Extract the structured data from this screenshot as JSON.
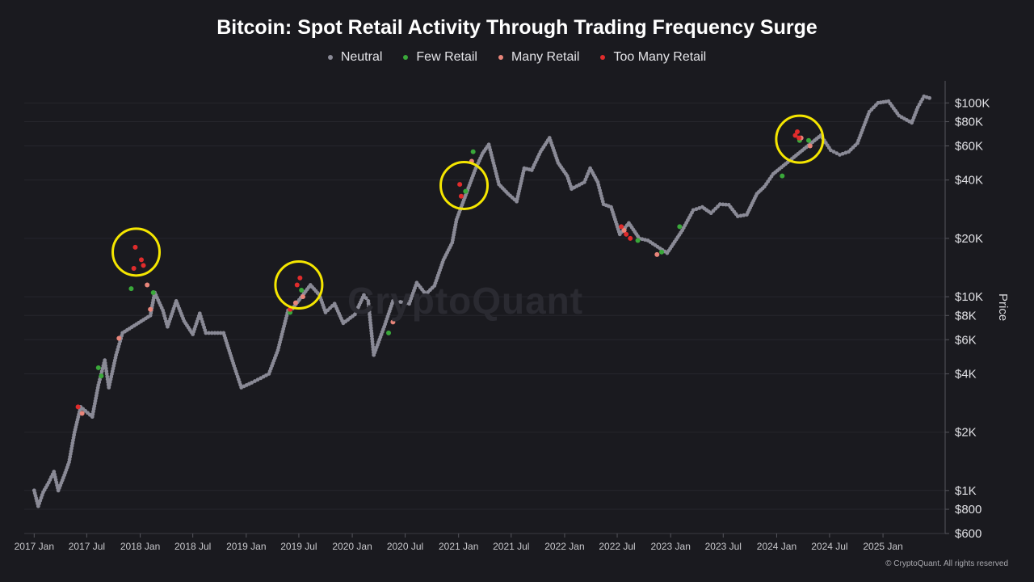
{
  "chart_data": {
    "type": "scatter",
    "title": "Bitcoin: Spot Retail Activity Through Trading Frequency Surge",
    "ylabel": "Price",
    "yscale": "log",
    "ylim": [
      600,
      130000
    ],
    "xlim": [
      "2016-12-20",
      "2025-07-20"
    ],
    "legend_position": "top-center",
    "x_ticks": [
      {
        "date": "2017-01-01",
        "label": "2017 Jan"
      },
      {
        "date": "2017-07-01",
        "label": "2017 Jul"
      },
      {
        "date": "2018-01-01",
        "label": "2018 Jan"
      },
      {
        "date": "2018-07-01",
        "label": "2018 Jul"
      },
      {
        "date": "2019-01-01",
        "label": "2019 Jan"
      },
      {
        "date": "2019-07-01",
        "label": "2019 Jul"
      },
      {
        "date": "2020-01-01",
        "label": "2020 Jan"
      },
      {
        "date": "2020-07-01",
        "label": "2020 Jul"
      },
      {
        "date": "2021-01-01",
        "label": "2021 Jan"
      },
      {
        "date": "2021-07-01",
        "label": "2021 Jul"
      },
      {
        "date": "2022-01-01",
        "label": "2022 Jan"
      },
      {
        "date": "2022-07-01",
        "label": "2022 Jul"
      },
      {
        "date": "2023-01-01",
        "label": "2023 Jan"
      },
      {
        "date": "2023-07-01",
        "label": "2023 Jul"
      },
      {
        "date": "2024-01-01",
        "label": "2024 Jan"
      },
      {
        "date": "2024-07-01",
        "label": "2024 Jul"
      },
      {
        "date": "2025-01-01",
        "label": "2025 Jan"
      }
    ],
    "y_ticks": [
      {
        "value": 600,
        "label": "$600"
      },
      {
        "value": 800,
        "label": "$800"
      },
      {
        "value": 1000,
        "label": "$1K"
      },
      {
        "value": 2000,
        "label": "$2K"
      },
      {
        "value": 4000,
        "label": "$4K"
      },
      {
        "value": 6000,
        "label": "$6K"
      },
      {
        "value": 8000,
        "label": "$8K"
      },
      {
        "value": 10000,
        "label": "$10K"
      },
      {
        "value": 20000,
        "label": "$20K"
      },
      {
        "value": 40000,
        "label": "$40K"
      },
      {
        "value": 60000,
        "label": "$60K"
      },
      {
        "value": 80000,
        "label": "$80K"
      },
      {
        "value": 100000,
        "label": "$100K"
      }
    ],
    "series": [
      {
        "name": "Neutral",
        "color": "#8a8a96",
        "points": [
          [
            "2017-01-01",
            1000
          ],
          [
            "2017-01-15",
            830
          ],
          [
            "2017-02-01",
            980
          ],
          [
            "2017-02-20",
            1100
          ],
          [
            "2017-03-10",
            1250
          ],
          [
            "2017-03-25",
            1000
          ],
          [
            "2017-04-15",
            1200
          ],
          [
            "2017-05-01",
            1400
          ],
          [
            "2017-05-20",
            2000
          ],
          [
            "2017-06-10",
            2700
          ],
          [
            "2017-07-20",
            2400
          ],
          [
            "2017-08-10",
            3500
          ],
          [
            "2017-09-01",
            4700
          ],
          [
            "2017-09-15",
            3400
          ],
          [
            "2017-10-10",
            5000
          ],
          [
            "2017-11-01",
            6500
          ],
          [
            "2018-02-05",
            8000
          ],
          [
            "2018-02-20",
            10500
          ],
          [
            "2018-03-20",
            8500
          ],
          [
            "2018-04-05",
            7000
          ],
          [
            "2018-05-05",
            9500
          ],
          [
            "2018-06-01",
            7500
          ],
          [
            "2018-07-01",
            6400
          ],
          [
            "2018-07-25",
            8200
          ],
          [
            "2018-08-15",
            6500
          ],
          [
            "2018-09-15",
            6500
          ],
          [
            "2018-10-15",
            6500
          ],
          [
            "2018-11-20",
            4400
          ],
          [
            "2018-12-15",
            3400
          ],
          [
            "2019-01-20",
            3600
          ],
          [
            "2019-02-20",
            3800
          ],
          [
            "2019-03-20",
            4000
          ],
          [
            "2019-04-20",
            5300
          ],
          [
            "2019-05-25",
            8500
          ],
          [
            "2019-06-10",
            8700
          ],
          [
            "2019-08-10",
            11500
          ],
          [
            "2019-09-10",
            10200
          ],
          [
            "2019-10-01",
            8300
          ],
          [
            "2019-11-01",
            9200
          ],
          [
            "2019-12-01",
            7300
          ],
          [
            "2020-01-10",
            8100
          ],
          [
            "2020-02-10",
            10200
          ],
          [
            "2020-02-25",
            9500
          ],
          [
            "2020-03-15",
            5000
          ],
          [
            "2020-04-20",
            7000
          ],
          [
            "2020-05-20",
            9500
          ],
          [
            "2020-06-15",
            9400
          ],
          [
            "2020-07-15",
            9200
          ],
          [
            "2020-08-10",
            11800
          ],
          [
            "2020-09-10",
            10300
          ],
          [
            "2020-10-10",
            11400
          ],
          [
            "2020-11-10",
            15500
          ],
          [
            "2020-12-10",
            19000
          ],
          [
            "2020-12-25",
            25000
          ],
          [
            "2021-03-01",
            46000
          ],
          [
            "2021-03-25",
            55000
          ],
          [
            "2021-04-15",
            61000
          ],
          [
            "2021-05-20",
            38000
          ],
          [
            "2021-06-20",
            34000
          ],
          [
            "2021-07-20",
            31000
          ],
          [
            "2021-08-15",
            46000
          ],
          [
            "2021-09-10",
            45000
          ],
          [
            "2021-10-10",
            56000
          ],
          [
            "2021-11-10",
            66000
          ],
          [
            "2021-12-10",
            49000
          ],
          [
            "2022-01-10",
            42000
          ],
          [
            "2022-01-25",
            36000
          ],
          [
            "2022-03-10",
            39000
          ],
          [
            "2022-03-30",
            46000
          ],
          [
            "2022-04-25",
            39000
          ],
          [
            "2022-05-15",
            30000
          ],
          [
            "2022-06-10",
            29000
          ],
          [
            "2022-07-10",
            21000
          ],
          [
            "2022-08-10",
            24000
          ],
          [
            "2022-09-15",
            20000
          ],
          [
            "2022-10-15",
            19500
          ],
          [
            "2022-12-20",
            16800
          ],
          [
            "2023-02-10",
            22000
          ],
          [
            "2023-03-20",
            28000
          ],
          [
            "2023-04-20",
            29000
          ],
          [
            "2023-05-20",
            27000
          ],
          [
            "2023-06-20",
            30000
          ],
          [
            "2023-07-20",
            29800
          ],
          [
            "2023-08-20",
            26000
          ],
          [
            "2023-09-20",
            26500
          ],
          [
            "2023-10-25",
            34000
          ],
          [
            "2023-11-20",
            37000
          ],
          [
            "2023-12-20",
            43000
          ],
          [
            "2024-06-01",
            68000
          ],
          [
            "2024-07-05",
            57000
          ],
          [
            "2024-08-05",
            54000
          ],
          [
            "2024-09-05",
            56000
          ],
          [
            "2024-10-05",
            62000
          ],
          [
            "2024-11-15",
            90000
          ],
          [
            "2024-12-15",
            100000
          ],
          [
            "2025-01-20",
            102000
          ],
          [
            "2025-02-25",
            86000
          ],
          [
            "2025-03-15",
            83000
          ],
          [
            "2025-04-10",
            79000
          ],
          [
            "2025-05-01",
            95000
          ],
          [
            "2025-05-22",
            108000
          ],
          [
            "2025-06-10",
            106000
          ]
        ]
      },
      {
        "name": "Few Retail",
        "color": "#3aa83a",
        "points": [
          [
            "2017-08-10",
            4300
          ],
          [
            "2017-08-20",
            3900
          ],
          [
            "2017-12-01",
            11000
          ],
          [
            "2018-02-15",
            10500
          ],
          [
            "2019-06-01",
            8300
          ],
          [
            "2019-07-10",
            10800
          ],
          [
            "2020-05-05",
            6500
          ],
          [
            "2021-01-25",
            35000
          ],
          [
            "2021-02-20",
            56000
          ],
          [
            "2022-09-10",
            19500
          ],
          [
            "2022-12-01",
            17000
          ],
          [
            "2023-02-01",
            23000
          ],
          [
            "2024-01-20",
            42000
          ],
          [
            "2024-03-20",
            64000
          ],
          [
            "2024-04-20",
            64000
          ]
        ]
      },
      {
        "name": "Many Retail",
        "color": "#e8857a",
        "points": [
          [
            "2017-06-15",
            2500
          ],
          [
            "2017-10-20",
            6100
          ],
          [
            "2018-01-25",
            11500
          ],
          [
            "2018-02-05",
            8600
          ],
          [
            "2019-06-20",
            9300
          ],
          [
            "2019-07-15",
            10000
          ],
          [
            "2020-05-20",
            7400
          ],
          [
            "2021-02-15",
            50000
          ],
          [
            "2022-07-25",
            22000
          ],
          [
            "2022-11-15",
            16500
          ],
          [
            "2024-04-25",
            60000
          ],
          [
            "2024-03-25",
            66000
          ]
        ]
      },
      {
        "name": "Too Many Retail",
        "color": "#e02c2c",
        "points": [
          [
            "2017-06-01",
            2700
          ],
          [
            "2017-12-10",
            14000
          ],
          [
            "2017-12-15",
            18000
          ],
          [
            "2018-01-05",
            15500
          ],
          [
            "2018-01-12",
            14500
          ],
          [
            "2019-06-01",
            8600
          ],
          [
            "2019-06-25",
            11500
          ],
          [
            "2019-07-05",
            12500
          ],
          [
            "2021-01-05",
            38000
          ],
          [
            "2021-01-10",
            33000
          ],
          [
            "2022-07-15",
            23000
          ],
          [
            "2022-08-01",
            21000
          ],
          [
            "2022-08-15",
            20000
          ],
          [
            "2024-03-05",
            68000
          ],
          [
            "2024-03-12",
            71000
          ],
          [
            "2024-03-18",
            66000
          ]
        ]
      }
    ],
    "annotations": [
      {
        "type": "circle",
        "color": "#f5e600",
        "x": "2017-12-18",
        "y": 17000
      },
      {
        "type": "circle",
        "color": "#f5e600",
        "x": "2019-07-01",
        "y": 11500
      },
      {
        "type": "circle",
        "color": "#f5e600",
        "x": "2021-01-20",
        "y": 37500
      },
      {
        "type": "circle",
        "color": "#f5e600",
        "x": "2024-03-20",
        "y": 65000
      }
    ]
  },
  "watermark": "CryptoQuant",
  "footer": "© CryptoQuant. All rights reserved"
}
